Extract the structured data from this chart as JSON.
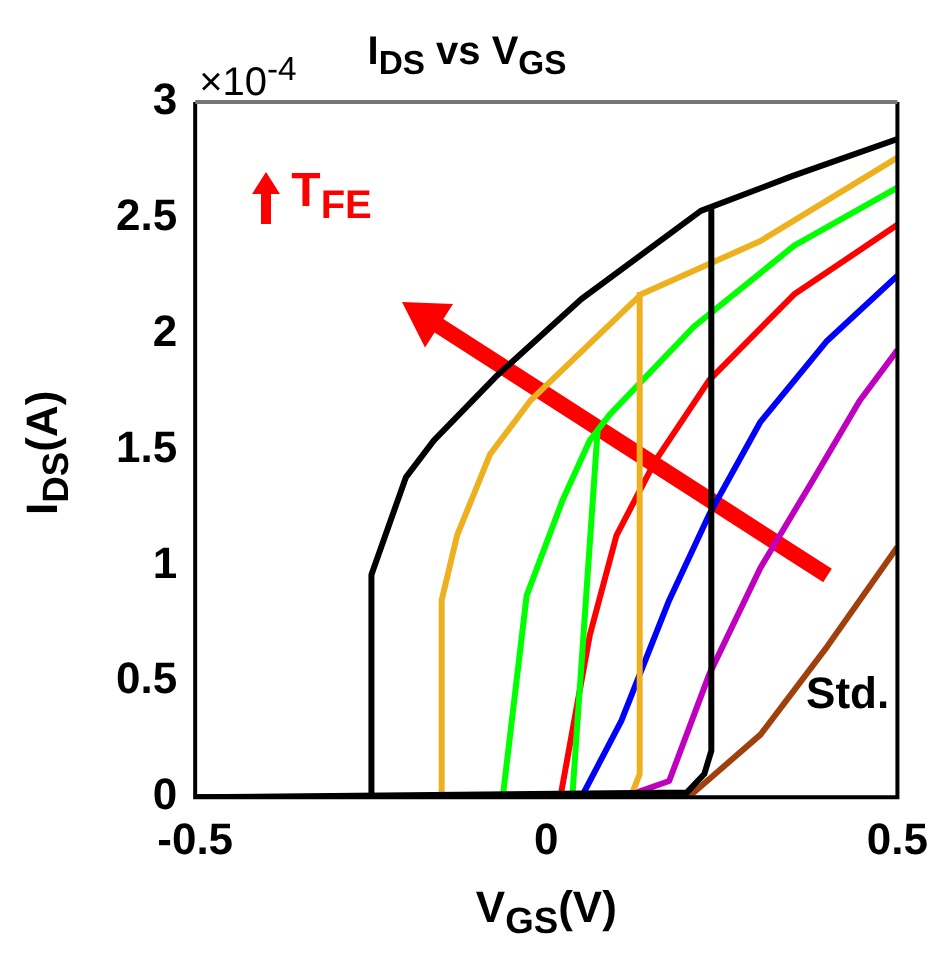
{
  "chart_data": {
    "type": "line",
    "title": "I$_{DS}$ vs V$_{GS}$",
    "xlabel": "V$_{GS}$(V)",
    "ylabel": "I$_{DS}$(A)",
    "xlim": [
      -0.5,
      0.5
    ],
    "xticks": [
      -0.5,
      0,
      0.5
    ],
    "ylim": [
      0,
      3
    ],
    "yticks": [
      0,
      0.5,
      1,
      1.5,
      2,
      2.5,
      3
    ],
    "legend": false,
    "marker": "none",
    "line_style": "solid",
    "annotations": [
      "×10$^{-4}$",
      "T$_{FE}$",
      "Std."
    ],
    "series": [
      {
        "color": "#000000",
        "x": [
          -0.5,
          -0.25,
          -0.249,
          -0.2,
          -0.16,
          -0.07,
          0.05,
          0.22,
          0.35,
          0.5
        ],
        "values": [
          0,
          0,
          0.96,
          1.38,
          1.54,
          1.82,
          2.15,
          2.53,
          2.68,
          2.84
        ]
      },
      {
        "color": "#000000",
        "x": [
          -0.5,
          0.2,
          0.225,
          0.235,
          0.235
        ],
        "values": [
          0,
          0.02,
          0.1,
          0.2,
          2.55
        ]
      },
      {
        "color": "#edb120",
        "x": [
          -0.5,
          -0.15,
          -0.149,
          -0.127,
          -0.08,
          -0.023,
          0.135,
          0.305,
          0.5
        ],
        "values": [
          0,
          0,
          0.85,
          1.13,
          1.48,
          1.71,
          2.17,
          2.4,
          2.76
        ]
      },
      {
        "color": "#edb120",
        "x": [
          -0.5,
          0.12,
          0.133,
          0.133
        ],
        "values": [
          0,
          0,
          0.1,
          2.18
        ]
      },
      {
        "color": "#00ff00",
        "x": [
          -0.5,
          -0.062,
          -0.028,
          0.023,
          0.062,
          0.09,
          0.21,
          0.353,
          0.5
        ],
        "values": [
          0,
          0,
          0.87,
          1.28,
          1.54,
          1.65,
          2.03,
          2.38,
          2.63
        ]
      },
      {
        "color": "#00ff00",
        "x": [
          0.037,
          0.073
        ],
        "values": [
          0,
          1.58
        ]
      },
      {
        "color": "#ff0000",
        "x": [
          -0.5,
          0.02,
          0.062,
          0.1,
          0.155,
          0.232,
          0.353,
          0.5
        ],
        "values": [
          0,
          0,
          0.7,
          1.13,
          1.45,
          1.8,
          2.17,
          2.47
        ]
      },
      {
        "color": "#0000ff",
        "x": [
          -0.5,
          0.05,
          0.107,
          0.175,
          0.232,
          0.305,
          0.4,
          0.5
        ],
        "values": [
          0,
          0,
          0.33,
          0.85,
          1.22,
          1.62,
          1.97,
          2.25
        ]
      },
      {
        "color": "#bf00bf",
        "x": [
          -0.5,
          0.11,
          0.175,
          0.232,
          0.305,
          0.38,
          0.446,
          0.5
        ],
        "values": [
          0,
          0,
          0.07,
          0.53,
          0.99,
          1.37,
          1.71,
          1.93
        ]
      },
      {
        "color": "#a0410d",
        "x": [
          0.15,
          0.21,
          0.305,
          0.4,
          0.5
        ],
        "values": [
          0,
          0.02,
          0.27,
          0.65,
          1.08
        ]
      }
    ]
  }
}
